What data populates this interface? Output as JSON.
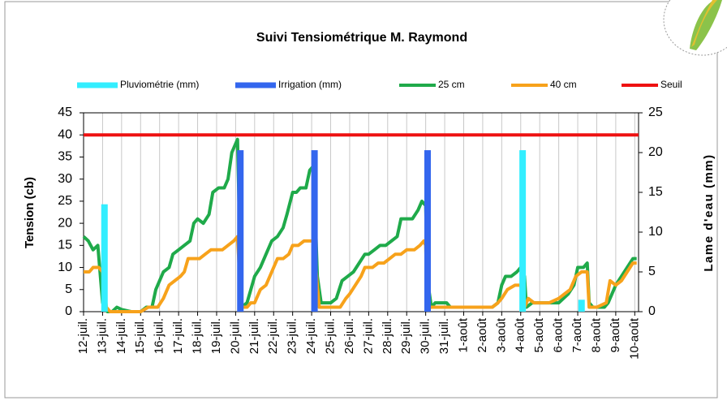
{
  "chart_data": {
    "type": "combo",
    "title": "Suivi Tensiométrique M. Raymond",
    "y_label": "Tension (cb)",
    "y2_label": "Lame d'eau (mm)",
    "xlim": [
      0,
      29.2
    ],
    "xticks": [
      {
        "value": 0,
        "label": "12-juil."
      },
      {
        "value": 1,
        "label": "13-juil."
      },
      {
        "value": 2,
        "label": "14-juil."
      },
      {
        "value": 3,
        "label": "15-juil."
      },
      {
        "value": 4,
        "label": "16-juil."
      },
      {
        "value": 5,
        "label": "17-juil."
      },
      {
        "value": 6,
        "label": "18-juil."
      },
      {
        "value": 7,
        "label": "19-juil."
      },
      {
        "value": 8,
        "label": "20-juil."
      },
      {
        "value": 9,
        "label": "21-juil."
      },
      {
        "value": 10,
        "label": "22-juil."
      },
      {
        "value": 11,
        "label": "23-juil."
      },
      {
        "value": 12,
        "label": "24-juil."
      },
      {
        "value": 13,
        "label": "25-juil."
      },
      {
        "value": 14,
        "label": "26-juil."
      },
      {
        "value": 15,
        "label": "27-juil."
      },
      {
        "value": 16,
        "label": "28-juil."
      },
      {
        "value": 17,
        "label": "29-juil."
      },
      {
        "value": 18,
        "label": "30-juil."
      },
      {
        "value": 19,
        "label": "31-juil."
      },
      {
        "value": 20,
        "label": "1-août"
      },
      {
        "value": 21,
        "label": "2-août"
      },
      {
        "value": 22,
        "label": "3-août"
      },
      {
        "value": 23,
        "label": "4-août"
      },
      {
        "value": 24,
        "label": "5-août"
      },
      {
        "value": 25,
        "label": "6-août"
      },
      {
        "value": 26,
        "label": "7-août"
      },
      {
        "value": 27,
        "label": "8-août"
      },
      {
        "value": 28,
        "label": "9-août"
      },
      {
        "value": 29,
        "label": "10-août"
      }
    ],
    "ylim": [
      0,
      45
    ],
    "yticks": [
      0,
      5,
      10,
      15,
      20,
      25,
      30,
      35,
      40,
      45
    ],
    "y2lim": [
      0,
      25
    ],
    "y2ticks": [
      0,
      5,
      10,
      15,
      20,
      25
    ],
    "grid": "x",
    "legend": "top",
    "series": [
      {
        "name": "Pluviométrie (mm)",
        "kind": "bar",
        "axis": "y2",
        "color": "#33eeff",
        "x": [
          1.1,
          23.1,
          26.2
        ],
        "values": [
          13.5,
          20.3,
          1.5
        ]
      },
      {
        "name": "Irrigation (mm)",
        "kind": "bar",
        "axis": "y2",
        "color": "#3366ee",
        "x": [
          8.25,
          12.15,
          18.1
        ],
        "values": [
          20.3,
          20.3,
          20.3
        ]
      },
      {
        "name": "25 cm",
        "kind": "line",
        "color": "#1faa4a",
        "x": [
          0,
          0.25,
          0.5,
          0.75,
          1.0,
          1.25,
          1.5,
          1.75,
          2,
          2.5,
          3,
          3.3,
          3.6,
          3.8,
          4.2,
          4.5,
          4.7,
          5,
          5.3,
          5.6,
          5.8,
          6,
          6.3,
          6.6,
          6.8,
          7.1,
          7.4,
          7.6,
          7.8,
          8.1,
          8.3,
          8.6,
          8.8,
          9,
          9.3,
          9.6,
          9.9,
          10.2,
          10.5,
          10.7,
          11,
          11.2,
          11.4,
          11.7,
          11.9,
          12.1,
          12.3,
          12.5,
          12.8,
          13,
          13.3,
          13.6,
          13.9,
          14.2,
          14.5,
          14.8,
          15,
          15.3,
          15.6,
          15.9,
          16.2,
          16.5,
          16.7,
          17,
          17.3,
          17.6,
          17.8,
          18,
          18.1,
          18.3,
          18.5,
          18.8,
          19.1,
          19.3,
          19.6,
          20,
          20.5,
          21,
          21.5,
          21.8,
          22,
          22.2,
          22.5,
          22.8,
          23,
          23.2,
          23.3,
          23.6,
          24,
          24.5,
          25,
          25.5,
          25.8,
          26,
          26.3,
          26.5,
          26.6,
          26.8,
          27,
          27.4,
          27.6,
          28,
          28.3,
          28.6,
          28.9,
          29.1
        ],
        "values": [
          17,
          16,
          14,
          15,
          2,
          0,
          0,
          1,
          0.5,
          0,
          0,
          1,
          1,
          5,
          9,
          10,
          13,
          14,
          15,
          16,
          20,
          21,
          20,
          22,
          27,
          28,
          28,
          30,
          36,
          39,
          1,
          2,
          5,
          8,
          10,
          13,
          16,
          17,
          19,
          22,
          27,
          27,
          28,
          28,
          32,
          33,
          8,
          2,
          2,
          2,
          3,
          7,
          8,
          9,
          11,
          13,
          13,
          14,
          15,
          15,
          16,
          17,
          21,
          21,
          21,
          23,
          25,
          24,
          7,
          1,
          2,
          2,
          2,
          1,
          1,
          1,
          1,
          1,
          1,
          2,
          6,
          8,
          8,
          9,
          10,
          8,
          1,
          2,
          2,
          2,
          2,
          4,
          6,
          10,
          10,
          11,
          2,
          1,
          1,
          1,
          2,
          6,
          8,
          10,
          12,
          12
        ]
      },
      {
        "name": "40 cm",
        "kind": "line",
        "color": "#f7a21b",
        "x": [
          0,
          0.3,
          0.5,
          0.8,
          1,
          1.2,
          1.4,
          2,
          3,
          3.4,
          3.6,
          3.9,
          4.2,
          4.5,
          4.8,
          5.1,
          5.3,
          5.5,
          5.8,
          6.1,
          6.4,
          6.7,
          7,
          7.3,
          7.6,
          7.9,
          8.1,
          8.3,
          8.6,
          8.8,
          9,
          9.3,
          9.6,
          9.9,
          10.2,
          10.5,
          10.8,
          11,
          11.3,
          11.6,
          11.9,
          12.1,
          12.3,
          12.4,
          12.7,
          13.2,
          13.5,
          13.8,
          14,
          14.3,
          14.6,
          14.8,
          15.2,
          15.5,
          15.8,
          16.1,
          16.4,
          16.7,
          17,
          17.4,
          17.7,
          17.9,
          18,
          18.1,
          18.5,
          19,
          20,
          21,
          21.5,
          21.8,
          22,
          22.3,
          22.7,
          23,
          23.2,
          23.4,
          23.7,
          24,
          24.5,
          25,
          25.3,
          25.6,
          25.9,
          26.2,
          26.5,
          26.6,
          27,
          27.5,
          27.7,
          28,
          28.3,
          28.6,
          28.9,
          29.1
        ],
        "values": [
          9,
          9,
          10,
          10,
          9,
          1,
          0,
          0,
          0,
          1,
          1,
          1,
          3,
          6,
          7,
          8,
          9,
          12,
          12,
          12,
          13,
          14,
          14,
          14,
          15,
          16,
          17,
          1,
          1,
          2,
          2,
          5,
          6,
          9,
          12,
          12,
          13,
          15,
          15,
          16,
          16,
          16,
          6,
          1,
          1,
          1,
          1,
          3,
          4,
          6,
          8,
          10,
          10,
          11,
          11,
          12,
          13,
          13,
          14,
          14,
          15,
          16,
          15,
          1,
          1,
          1,
          1,
          1,
          1,
          2,
          3,
          5,
          6,
          6,
          1,
          3,
          2,
          2,
          2,
          3,
          4,
          5,
          8,
          9,
          9,
          1,
          1,
          2,
          7,
          6,
          7,
          9,
          11,
          11
        ]
      },
      {
        "name": "Seuil",
        "kind": "line",
        "color": "#ee1111",
        "x": [
          0,
          29.2
        ],
        "values": [
          40,
          40
        ]
      }
    ]
  }
}
